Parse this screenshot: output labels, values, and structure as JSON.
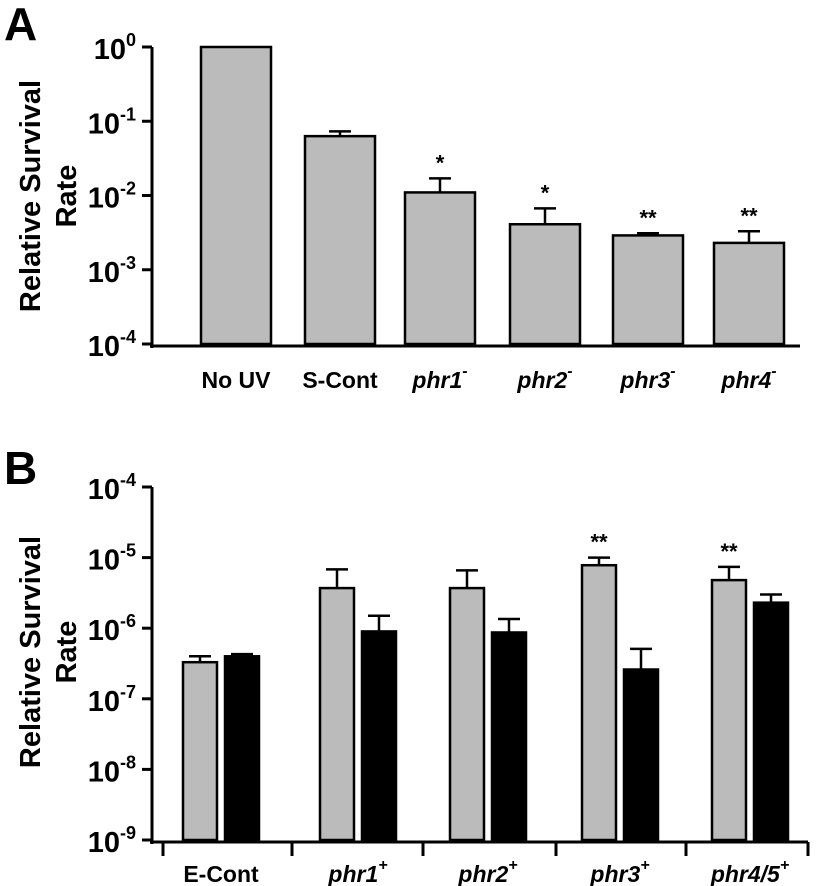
{
  "chart_data": [
    {
      "panel": "A",
      "type": "bar",
      "scale": "log",
      "ylabel": "Relative Survival\nRate",
      "ylim": [
        0.0001,
        1
      ],
      "yticks": [
        {
          "base": "10",
          "exp": "0"
        },
        {
          "base": "10",
          "exp": "-1"
        },
        {
          "base": "10",
          "exp": "-2"
        },
        {
          "base": "10",
          "exp": "-3"
        },
        {
          "base": "10",
          "exp": "-4"
        }
      ],
      "categories": [
        {
          "text": "No UV",
          "sup": "",
          "italic": false
        },
        {
          "text": "S-Cont",
          "sup": "",
          "italic": false
        },
        {
          "text": "phr1",
          "sup": "-",
          "italic": true
        },
        {
          "text": "phr2",
          "sup": "-",
          "italic": true
        },
        {
          "text": "phr3",
          "sup": "-",
          "italic": true
        },
        {
          "text": "phr4",
          "sup": "-",
          "italic": true
        }
      ],
      "series": [
        {
          "name": "survival",
          "color": "#bbbbbb",
          "values": [
            1.0,
            0.063,
            0.011,
            0.0041,
            0.0029,
            0.0023
          ],
          "errors_upper": [
            null,
            0.073,
            0.017,
            0.0067,
            0.0031,
            0.0033
          ],
          "significance": [
            "",
            "",
            "*",
            "*",
            "**",
            "**"
          ]
        }
      ]
    },
    {
      "panel": "B",
      "type": "bar",
      "scale": "log",
      "ylabel": "Relative Survival\nRate",
      "ylim": [
        1e-09,
        0.0001
      ],
      "yticks": [
        {
          "base": "10",
          "exp": "-4"
        },
        {
          "base": "10",
          "exp": "-5"
        },
        {
          "base": "10",
          "exp": "-6"
        },
        {
          "base": "10",
          "exp": "-7"
        },
        {
          "base": "10",
          "exp": "-8"
        },
        {
          "base": "10",
          "exp": "-9"
        }
      ],
      "categories": [
        {
          "text": "E-Cont",
          "sup": "",
          "italic": false
        },
        {
          "text": "phr1",
          "sup": "+",
          "italic": true
        },
        {
          "text": "phr2",
          "sup": "+",
          "italic": true
        },
        {
          "text": "phr3",
          "sup": "+",
          "italic": true
        },
        {
          "text": "phr4/5",
          "sup": "+",
          "italic": true
        }
      ],
      "series": [
        {
          "name": "grey",
          "color": "#bbbbbb",
          "values": [
            3.3e-07,
            3.7e-06,
            3.7e-06,
            7.8e-06,
            4.8e-06
          ],
          "errors_upper": [
            4e-07,
            6.8e-06,
            6.6e-06,
            1e-05,
            7.4e-06
          ],
          "significance": [
            "",
            "",
            "",
            "**",
            "**"
          ]
        },
        {
          "name": "black",
          "color": "#000000",
          "values": [
            4e-07,
            9e-07,
            8.7e-07,
            2.6e-07,
            2.3e-06
          ],
          "errors_upper": [
            4.3e-07,
            1.5e-06,
            1.35e-06,
            5.1e-07,
            3e-06
          ],
          "significance": [
            "",
            "",
            "",
            "",
            ""
          ]
        }
      ]
    }
  ]
}
